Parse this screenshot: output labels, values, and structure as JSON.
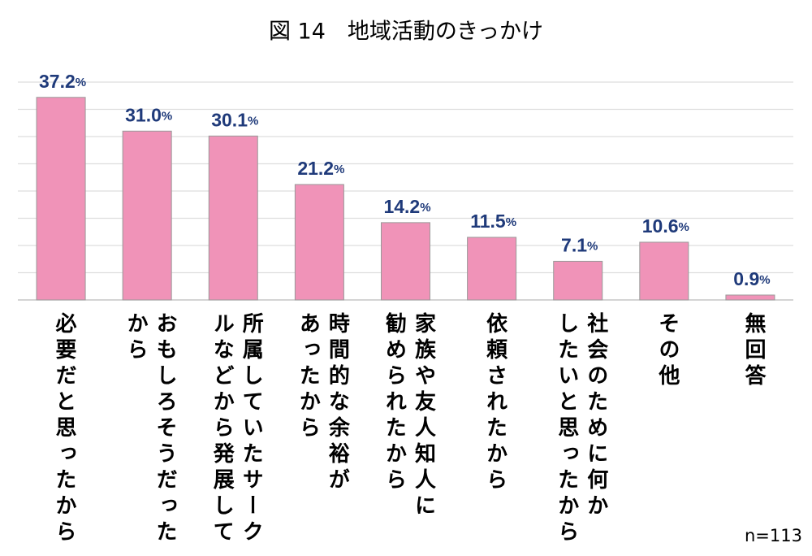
{
  "chart_data": {
    "type": "bar",
    "title": "図 14　地域活動のきっかけ",
    "categories": [
      "必要だと思ったから",
      "おもしろそうだった\nから",
      "所属していたサーク\nルなどから発展して",
      "時間的な余裕が\nあったから",
      "家族や友人知人に\n勧められたから",
      "依頼されたから",
      "社会のために何か\nしたいと思ったから",
      "その他",
      "無回答"
    ],
    "values": [
      37.2,
      31.0,
      30.1,
      21.2,
      14.2,
      11.5,
      7.1,
      10.6,
      0.9
    ],
    "value_labels": [
      "37.2%",
      "31.0%",
      "30.1%",
      "21.2%",
      "14.2%",
      "11.5%",
      "7.1%",
      "10.6%",
      "0.9%"
    ],
    "color": "#f093b8",
    "ylim": [
      0,
      40
    ],
    "yticks": [
      0,
      5,
      10,
      15,
      20,
      25,
      30,
      35,
      40
    ],
    "grid": true,
    "note": "n=113"
  }
}
